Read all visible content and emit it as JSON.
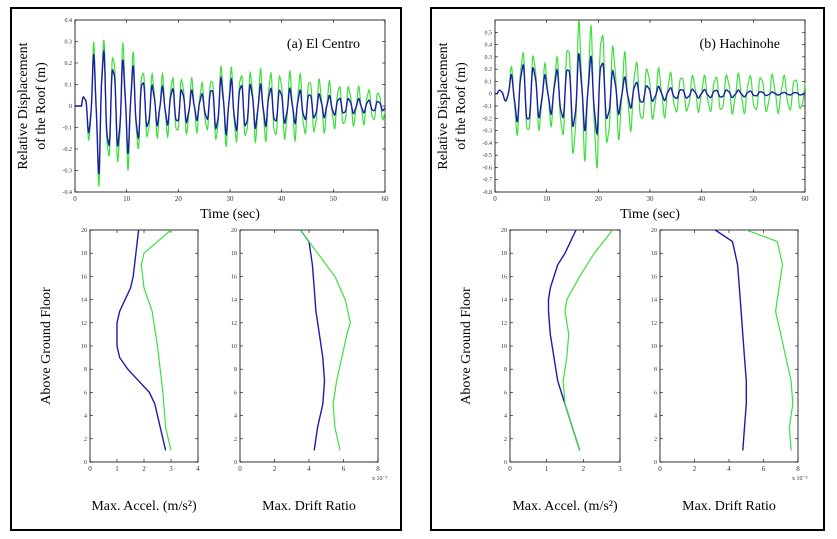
{
  "colors": {
    "series1": "#1c1ca8",
    "series2": "#3ee03e",
    "frame": "#000000"
  },
  "chart_data": [
    {
      "panel": "a",
      "type": "line",
      "title": "(a) El Centro",
      "xlabel": "Time (sec)",
      "ylabel_line1": "Relative Displacement",
      "ylabel_line2": "of the Roof (m)",
      "xlim": [
        0,
        60
      ],
      "ylim": [
        -0.4,
        0.4
      ],
      "xticks": [
        "0",
        "10",
        "20",
        "30",
        "40",
        "50",
        "60"
      ],
      "yticks": [
        "-0.4",
        "-0.3",
        "-0.2",
        "-0.1",
        "0",
        "0.1",
        "0.2",
        "0.3",
        "0.4"
      ],
      "series": [
        {
          "color": "series2",
          "amp_profile": [
            [
              0,
              0.01
            ],
            [
              2,
              0.05
            ],
            [
              3,
              0.2
            ],
            [
              4,
              0.3
            ],
            [
              5,
              0.35
            ],
            [
              6,
              0.25
            ],
            [
              8,
              0.25
            ],
            [
              10,
              0.27
            ],
            [
              12,
              0.2
            ],
            [
              14,
              0.15
            ],
            [
              16,
              0.13
            ],
            [
              20,
              0.13
            ],
            [
              25,
              0.1
            ],
            [
              28,
              0.17
            ],
            [
              33,
              0.15
            ],
            [
              38,
              0.15
            ],
            [
              43,
              0.14
            ],
            [
              50,
              0.1
            ],
            [
              55,
              0.08
            ],
            [
              60,
              0.06
            ]
          ],
          "period": 1.9,
          "phase": 0.2,
          "start": 1.3
        },
        {
          "color": "series1",
          "amp_profile": [
            [
              0,
              0.01
            ],
            [
              2,
              0.05
            ],
            [
              3,
              0.15
            ],
            [
              4,
              0.25
            ],
            [
              5,
              0.3
            ],
            [
              6,
              0.2
            ],
            [
              8,
              0.18
            ],
            [
              10,
              0.2
            ],
            [
              12,
              0.15
            ],
            [
              14,
              0.1
            ],
            [
              16,
              0.08
            ],
            [
              20,
              0.08
            ],
            [
              25,
              0.05
            ],
            [
              28,
              0.12
            ],
            [
              33,
              0.1
            ],
            [
              38,
              0.08
            ],
            [
              43,
              0.07
            ],
            [
              50,
              0.04
            ],
            [
              55,
              0.03
            ],
            [
              60,
              0.02
            ]
          ],
          "period": 1.9,
          "phase": 0.2,
          "start": 1.3
        }
      ]
    },
    {
      "panel": "a",
      "type": "line",
      "xlabel": "Max. Accel. (m/s²)",
      "ylabel": "Above Ground Floor",
      "xlim": [
        0,
        4
      ],
      "ylim": [
        0,
        20
      ],
      "xticks": [
        "0",
        "1",
        "2",
        "3",
        "4"
      ],
      "yticks": [
        "0",
        "2",
        "4",
        "6",
        "8",
        "10",
        "12",
        "14",
        "16",
        "18",
        "20"
      ],
      "series": [
        {
          "color": "series1",
          "x": [
            2.8,
            2.6,
            2.4,
            2.2,
            1.8,
            1.4,
            1.1,
            1.0,
            1.0,
            1.0,
            1.1,
            1.3,
            1.5,
            1.6,
            1.7,
            1.8
          ],
          "y": [
            1,
            3,
            5,
            6,
            7,
            8,
            9,
            10,
            11,
            12,
            13,
            14,
            15,
            16,
            18,
            20
          ]
        },
        {
          "color": "series2",
          "x": [
            3.0,
            2.8,
            2.7,
            2.6,
            2.5,
            2.3,
            2.0,
            1.9,
            2.0,
            2.5,
            3.0
          ],
          "y": [
            1,
            3,
            6,
            8,
            10,
            13,
            15,
            17,
            18,
            19,
            20
          ]
        }
      ]
    },
    {
      "panel": "a",
      "type": "line",
      "xlabel": "Max. Drift Ratio",
      "xlim": [
        0,
        8
      ],
      "ylim": [
        0,
        20
      ],
      "xticks": [
        "0",
        "2",
        "4",
        "6",
        "8"
      ],
      "yticks": [
        "0",
        "2",
        "4",
        "6",
        "8",
        "10",
        "12",
        "14",
        "16",
        "18",
        "20"
      ],
      "x_multiplier": "x 10⁻³",
      "series": [
        {
          "color": "series1",
          "x": [
            4.3,
            4.5,
            4.8,
            4.9,
            4.8,
            4.6,
            4.4,
            4.3,
            4.2,
            4.0,
            3.5
          ],
          "y": [
            1,
            3,
            5,
            7,
            9,
            11,
            13,
            15,
            17,
            19,
            20
          ]
        },
        {
          "color": "series2",
          "x": [
            5.8,
            5.5,
            5.4,
            5.6,
            5.9,
            6.2,
            6.4,
            6.1,
            5.5,
            4.5,
            3.5
          ],
          "y": [
            1,
            3,
            5,
            7,
            9,
            11,
            12,
            14,
            16,
            18,
            20
          ]
        }
      ]
    },
    {
      "panel": "b",
      "type": "line",
      "title": "(b) Hachinohe",
      "xlabel": "Time (sec)",
      "ylabel_line1": "Relative Displacement",
      "ylabel_line2": "of the Roof (m)",
      "xlim": [
        0,
        60
      ],
      "ylim": [
        -0.8,
        0.6
      ],
      "xticks": [
        "0",
        "10",
        "20",
        "30",
        "40",
        "50",
        "60"
      ],
      "yticks": [
        "-0.8",
        "-0.7",
        "-0.6",
        "-0.5",
        "-0.4",
        "-0.3",
        "-0.2",
        "-0.1",
        "0",
        "0.1",
        "0.2",
        "0.3",
        "0.4",
        "0.5"
      ],
      "series": [
        {
          "color": "series2",
          "amp_profile": [
            [
              0,
              0.01
            ],
            [
              2,
              0.05
            ],
            [
              4,
              0.3
            ],
            [
              6,
              0.35
            ],
            [
              8,
              0.3
            ],
            [
              10,
              0.2
            ],
            [
              12,
              0.28
            ],
            [
              14,
              0.4
            ],
            [
              16,
              0.55
            ],
            [
              18,
              0.45
            ],
            [
              20,
              0.6
            ],
            [
              22,
              0.4
            ],
            [
              25,
              0.3
            ],
            [
              30,
              0.2
            ],
            [
              35,
              0.15
            ],
            [
              40,
              0.13
            ],
            [
              45,
              0.15
            ],
            [
              50,
              0.14
            ],
            [
              55,
              0.14
            ],
            [
              60,
              0.12
            ]
          ],
          "period": 2.2,
          "phase": 0.4,
          "start": 0.5
        },
        {
          "color": "series1",
          "amp_profile": [
            [
              0,
              0.01
            ],
            [
              2,
              0.05
            ],
            [
              4,
              0.2
            ],
            [
              6,
              0.25
            ],
            [
              8,
              0.2
            ],
            [
              10,
              0.12
            ],
            [
              12,
              0.18
            ],
            [
              14,
              0.22
            ],
            [
              16,
              0.3
            ],
            [
              18,
              0.25
            ],
            [
              20,
              0.32
            ],
            [
              22,
              0.2
            ],
            [
              25,
              0.12
            ],
            [
              30,
              0.06
            ],
            [
              35,
              0.04
            ],
            [
              40,
              0.03
            ],
            [
              45,
              0.03
            ],
            [
              50,
              0.02
            ],
            [
              55,
              0.01
            ],
            [
              60,
              0.01
            ]
          ],
          "period": 2.2,
          "phase": 0.4,
          "start": 0.5
        }
      ]
    },
    {
      "panel": "b",
      "type": "line",
      "xlabel": "Max. Accel. (m/s²)",
      "ylabel": "Above Ground Floor",
      "xlim": [
        0,
        3
      ],
      "ylim": [
        0,
        20
      ],
      "xticks": [
        "0",
        "1",
        "2",
        "3"
      ],
      "yticks": [
        "0",
        "2",
        "4",
        "6",
        "8",
        "10",
        "12",
        "14",
        "16",
        "18",
        "20"
      ],
      "series": [
        {
          "color": "series1",
          "x": [
            1.9,
            1.7,
            1.5,
            1.4,
            1.3,
            1.2,
            1.1,
            1.05,
            1.05,
            1.1,
            1.2,
            1.3,
            1.5,
            1.8
          ],
          "y": [
            1,
            3,
            5,
            6,
            7,
            9,
            11,
            13,
            14,
            15,
            16,
            17,
            18,
            20
          ]
        },
        {
          "color": "series2",
          "x": [
            1.9,
            1.7,
            1.5,
            1.45,
            1.55,
            1.6,
            1.5,
            1.55,
            1.9,
            2.3,
            2.8
          ],
          "y": [
            1,
            3,
            5,
            7,
            9,
            11,
            13,
            14,
            16,
            18,
            20
          ]
        }
      ]
    },
    {
      "panel": "b",
      "type": "line",
      "xlabel": "Max. Drift Ratio",
      "xlim": [
        0,
        8
      ],
      "ylim": [
        0,
        20
      ],
      "xticks": [
        "0",
        "2",
        "4",
        "6",
        "8"
      ],
      "yticks": [
        "0",
        "2",
        "4",
        "6",
        "8",
        "10",
        "12",
        "14",
        "16",
        "18",
        "20"
      ],
      "x_multiplier": "x 10⁻³",
      "series": [
        {
          "color": "series1",
          "x": [
            4.8,
            4.9,
            5.0,
            5.0,
            4.9,
            4.8,
            4.7,
            4.6,
            4.5,
            4.2,
            3.2
          ],
          "y": [
            1,
            3,
            5,
            7,
            9,
            11,
            13,
            15,
            17,
            19,
            20
          ]
        },
        {
          "color": "series2",
          "x": [
            7.6,
            7.5,
            7.7,
            7.6,
            7.3,
            7.0,
            6.7,
            6.9,
            7.1,
            6.8,
            5.0
          ],
          "y": [
            1,
            3,
            5,
            7,
            9,
            11,
            13,
            15,
            17,
            19,
            20
          ]
        }
      ]
    }
  ]
}
